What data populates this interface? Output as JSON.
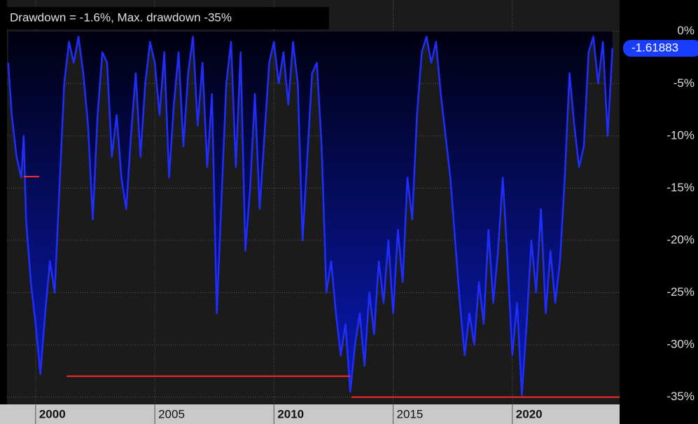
{
  "chart_data": {
    "type": "area",
    "title": "Drawdown = -1.6%, Max. drawdown -35%",
    "xlim": [
      1998.8,
      2024.5
    ],
    "xticks": [
      2000,
      2005,
      2010,
      2015,
      2020
    ],
    "ylim": [
      -35.7,
      3
    ],
    "yticks": [
      {
        "value": 0,
        "label": "0%"
      },
      {
        "value": -5,
        "label": "-5%"
      },
      {
        "value": -10,
        "label": "-10%"
      },
      {
        "value": -15,
        "label": "-15%"
      },
      {
        "value": -20,
        "label": "-20%"
      },
      {
        "value": -25,
        "label": "-25%"
      },
      {
        "value": -30,
        "label": "-30%"
      },
      {
        "value": -35,
        "label": "-35%"
      }
    ],
    "grid": true,
    "series": [
      {
        "color": "#1f2eff",
        "x": [
          1998.85,
          1999.0,
          1999.2,
          1999.4,
          1999.5,
          1999.6,
          1999.8,
          2000.0,
          2000.2,
          2000.4,
          2000.6,
          2000.8,
          2001.0,
          2001.2,
          2001.4,
          2001.6,
          2001.8,
          2002.0,
          2002.2,
          2002.4,
          2002.6,
          2002.8,
          2003.0,
          2003.2,
          2003.4,
          2003.6,
          2003.8,
          2004.0,
          2004.2,
          2004.4,
          2004.6,
          2004.8,
          2005.0,
          2005.2,
          2005.4,
          2005.6,
          2005.8,
          2006.0,
          2006.2,
          2006.4,
          2006.6,
          2006.8,
          2007.0,
          2007.2,
          2007.4,
          2007.6,
          2007.8,
          2008.0,
          2008.2,
          2008.4,
          2008.6,
          2008.8,
          2009.0,
          2009.2,
          2009.4,
          2009.6,
          2009.8,
          2010.0,
          2010.2,
          2010.4,
          2010.6,
          2010.8,
          2011.0,
          2011.2,
          2011.4,
          2011.6,
          2011.8,
          2012.0,
          2012.2,
          2012.4,
          2012.6,
          2012.8,
          2013.0,
          2013.2,
          2013.4,
          2013.6,
          2013.8,
          2014.0,
          2014.2,
          2014.4,
          2014.6,
          2014.8,
          2015.0,
          2015.2,
          2015.4,
          2015.6,
          2015.8,
          2016.0,
          2016.2,
          2016.4,
          2016.6,
          2016.8,
          2017.0,
          2017.2,
          2017.4,
          2017.6,
          2017.8,
          2018.0,
          2018.2,
          2018.4,
          2018.6,
          2018.8,
          2019.0,
          2019.2,
          2019.4,
          2019.6,
          2019.8,
          2020.0,
          2020.2,
          2020.4,
          2020.6,
          2020.8,
          2021.0,
          2021.2,
          2021.4,
          2021.6,
          2021.8,
          2022.0,
          2022.2,
          2022.4,
          2022.6,
          2022.8,
          2023.0,
          2023.2,
          2023.4,
          2023.6,
          2023.8,
          2024.0,
          2024.2
        ],
        "values": [
          -3,
          -8,
          -12,
          -14,
          -10,
          -18,
          -24,
          -28,
          -32.8,
          -27,
          -22,
          -25,
          -15,
          -5,
          -1,
          -3,
          -0.5,
          -4,
          -9,
          -18,
          -8,
          -2,
          -3,
          -12,
          -8,
          -14,
          -17,
          -10,
          -4,
          -12,
          -5,
          -1,
          -3,
          -8,
          -2,
          -14,
          -7,
          -2,
          -11,
          -4,
          -0.5,
          -9,
          -3,
          -13,
          -6,
          -27,
          -16,
          -5,
          -1,
          -13,
          -2,
          -21,
          -15,
          -6,
          -17,
          -10,
          -3,
          -1,
          -5,
          -2,
          -7,
          -1,
          -5,
          -20,
          -12,
          -4,
          -3,
          -11,
          -25,
          -22,
          -27,
          -31,
          -28,
          -34.5,
          -30,
          -27,
          -32,
          -25,
          -29,
          -22,
          -26,
          -20,
          -27,
          -19,
          -24,
          -14,
          -18,
          -8,
          -2,
          -0.5,
          -3,
          -1,
          -6,
          -10,
          -14,
          -20,
          -26,
          -31,
          -27,
          -30,
          -24,
          -28,
          -19,
          -26,
          -21,
          -14,
          -22,
          -31,
          -26,
          -34.8,
          -28,
          -20,
          -25,
          -17,
          -27,
          -21,
          -26,
          -22,
          -14,
          -4,
          -9,
          -13,
          -11,
          -2,
          -0.5,
          -5,
          -1,
          -10,
          -1.61883
        ]
      }
    ],
    "max_drawdown_segments": {
      "color": "#ff2a2a",
      "segments": [
        {
          "x": [
            1999.5,
            2000.15
          ],
          "value": -13.9
        },
        {
          "x": [
            2001.3,
            2013.2
          ],
          "value": -33
        },
        {
          "x": [
            2013.25,
            2024.5
          ],
          "value": -35
        }
      ]
    }
  }
}
